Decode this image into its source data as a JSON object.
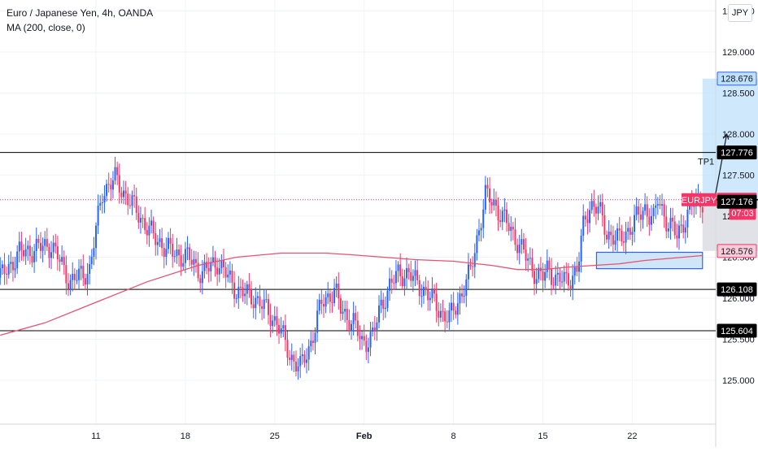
{
  "header": {
    "title": "Euro / Japanese Yen, 4h, OANDA",
    "indicator": "MA (200, close, 0)"
  },
  "currency_button": "JPY",
  "colors": {
    "up": "#2962ff",
    "down": "#f23668",
    "ma": "#e8516f",
    "level": "#000000",
    "target_zone": "#bfe0fb",
    "stop_zone": "#dcdde3",
    "demand_box_fill": "#cfe6f8",
    "demand_box_border": "#2962ff",
    "grid": "#f0f3fa",
    "symbol_badge": "#f23668"
  },
  "chart_data": {
    "type": "candlestick",
    "symbol": "EURJPY",
    "title": "Euro / Japanese Yen, 4h, OANDA",
    "timeframe": "4h",
    "x_axis": {
      "ticks": [
        "11",
        "18",
        "25",
        "Feb",
        "8",
        "15",
        "22"
      ],
      "bold_ticks": [
        "Feb"
      ]
    },
    "y_axis": {
      "range": [
        124.65,
        130.0
      ],
      "ticks": [
        "125.000",
        "125.500",
        "126.000",
        "126.500",
        "127.000",
        "127.500",
        "128.000",
        "128.500",
        "129.000",
        "129.500"
      ]
    },
    "price_labels": [
      {
        "value": 128.676,
        "text": "128.676",
        "style": "blue"
      },
      {
        "value": 127.776,
        "text": "127.776",
        "style": "black"
      },
      {
        "value": 127.2,
        "text": "127.200",
        "style": "red"
      },
      {
        "value": 127.04,
        "text": "07:03",
        "style": "red"
      },
      {
        "value": 127.176,
        "text": "127.176",
        "style": "black"
      },
      {
        "value": 126.576,
        "text": "126.576",
        "style": "pink"
      },
      {
        "value": 126.108,
        "text": "126.108",
        "style": "black"
      },
      {
        "value": 125.604,
        "text": "125.604",
        "style": "black"
      }
    ],
    "symbol_badge": {
      "text": "EURJPY",
      "value": 127.2
    },
    "horizontal_levels": [
      127.776,
      126.108,
      125.604
    ],
    "level_labels": [
      {
        "text": "TP1",
        "value": 127.776
      }
    ],
    "current_price": 127.2,
    "moving_average": {
      "name": "MA (200, close, 0)",
      "x_days": [
        -7.5,
        -4,
        0,
        4,
        8,
        11,
        14.5,
        18,
        20,
        22.5,
        25,
        28,
        31,
        33,
        35,
        37,
        41,
        43,
        47.5
      ],
      "values": [
        125.55,
        125.7,
        125.95,
        126.2,
        126.4,
        126.5,
        126.55,
        126.55,
        126.53,
        126.5,
        126.47,
        126.45,
        126.4,
        126.35,
        126.35,
        126.38,
        126.42,
        126.46,
        126.52
      ]
    },
    "candle_anchors": {
      "x_days": [
        -7.5,
        -6,
        -3.5,
        -2,
        -0.5,
        0.5,
        1.5,
        3,
        4.5,
        6,
        7.2,
        8.3,
        9.5,
        11,
        12.5,
        14.2,
        15.2,
        16,
        16.7,
        17.7,
        18.7,
        19.2,
        20.2,
        20.8,
        21.7,
        22.3,
        23,
        23.7,
        24.5,
        25,
        25.7,
        26.5,
        27.2,
        27.7,
        28.3,
        29.3,
        30.5,
        31.2,
        32,
        33,
        34,
        34.5,
        35,
        35.3,
        36,
        36.8,
        37.7,
        38.2,
        38.7,
        39.3,
        40,
        41,
        42,
        43,
        43.7,
        44,
        44.7,
        45.5,
        46.2,
        46.8,
        47.5
      ],
      "closes": [
        126.25,
        126.55,
        126.65,
        126.2,
        126.35,
        127.3,
        127.45,
        127.1,
        126.75,
        126.55,
        126.5,
        126.3,
        126.45,
        126.1,
        126.0,
        125.7,
        125.3,
        125.15,
        125.4,
        125.95,
        126.1,
        125.85,
        125.7,
        125.45,
        125.55,
        125.9,
        126.15,
        126.3,
        126.3,
        126.2,
        126.1,
        125.95,
        125.8,
        125.75,
        125.95,
        126.3,
        127.25,
        127.15,
        126.95,
        126.7,
        126.4,
        126.3,
        126.25,
        126.35,
        126.25,
        126.2,
        126.35,
        126.9,
        127.15,
        127.1,
        126.8,
        126.7,
        126.9,
        127.1,
        126.95,
        127.2,
        126.95,
        126.75,
        127.0,
        127.15,
        127.2
      ]
    },
    "annotations": {
      "position_tool": {
        "entry": 127.2,
        "target": 128.676,
        "stop": 126.576,
        "x_days": [
          47.5,
          58.5
        ]
      },
      "demand_zone": {
        "x_days": [
          39.2,
          47.5
        ],
        "top": 126.56,
        "bottom": 126.36
      },
      "arrow": {
        "from": [
          48.5,
          127.25
        ],
        "to": [
          49.4,
          128.0
        ]
      }
    }
  }
}
